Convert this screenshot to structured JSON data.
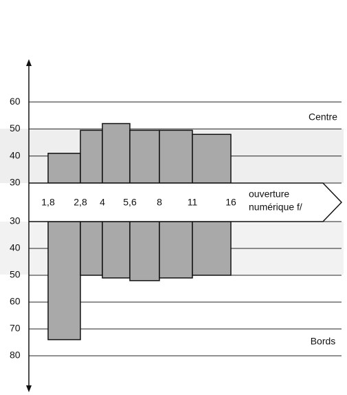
{
  "chart_data": {
    "type": "bar",
    "x_edges": [
      "1,8",
      "2,8",
      "4",
      "5,6",
      "8",
      "11",
      "16"
    ],
    "x_label": [
      "ouverture",
      "numérique f/"
    ],
    "top": {
      "name": "Centre",
      "values": [
        41,
        49.5,
        52,
        49.5,
        49.5,
        48
      ],
      "ylim": [
        30,
        60
      ],
      "yticks": [
        30,
        40,
        50,
        60
      ]
    },
    "bottom": {
      "name": "Bords",
      "values": [
        74,
        50,
        51,
        52,
        51,
        50
      ],
      "ylim": [
        30,
        80
      ],
      "yticks": [
        30,
        40,
        50,
        60,
        70,
        80
      ]
    },
    "color": "#a9a9a9",
    "grid": true
  }
}
